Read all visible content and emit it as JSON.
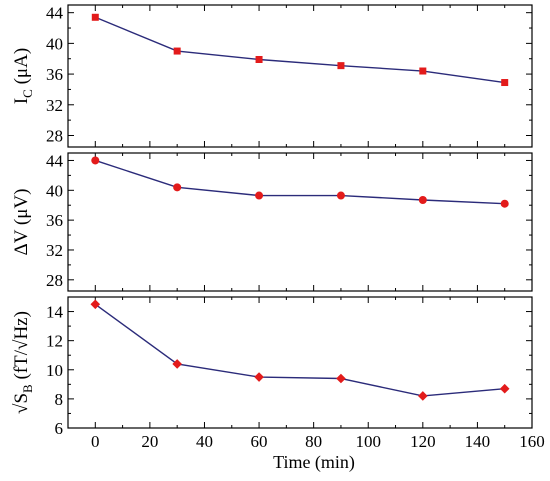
{
  "chart_data": [
    {
      "type": "line",
      "ylabel": {
        "main": "I",
        "sub": "C",
        "rest": " (μA)"
      },
      "x": [
        0,
        30,
        60,
        90,
        120,
        150
      ],
      "series": [
        {
          "values": [
            43.4,
            39.0,
            37.9,
            37.1,
            36.4,
            34.9
          ]
        }
      ],
      "marker": "square",
      "xlim": [
        -10,
        160
      ],
      "ylim": [
        26.5,
        45
      ],
      "yticks": [
        28,
        32,
        36,
        40,
        44
      ],
      "xticks": [
        0,
        20,
        40,
        60,
        80,
        100,
        120,
        140,
        160
      ],
      "show_xticklabels": false
    },
    {
      "type": "line",
      "ylabel": {
        "main": "ΔV (μV)",
        "sub": "",
        "rest": ""
      },
      "x": [
        0,
        30,
        60,
        90,
        120,
        150
      ],
      "series": [
        {
          "values": [
            44.0,
            40.4,
            39.3,
            39.3,
            38.7,
            38.2
          ]
        }
      ],
      "marker": "circle",
      "xlim": [
        -10,
        160
      ],
      "ylim": [
        26.5,
        45
      ],
      "yticks": [
        28,
        32,
        36,
        40,
        44
      ],
      "xticks": [
        0,
        20,
        40,
        60,
        80,
        100,
        120,
        140,
        160
      ],
      "show_xticklabels": false
    },
    {
      "type": "line",
      "ylabel": {
        "main": "√S",
        "sub": "B",
        "rest": " (fT/√Hz)"
      },
      "x": [
        0,
        30,
        60,
        90,
        120,
        150
      ],
      "series": [
        {
          "values": [
            14.5,
            10.4,
            9.5,
            9.4,
            8.2,
            8.7
          ]
        }
      ],
      "marker": "diamond",
      "xlim": [
        -10,
        160
      ],
      "ylim": [
        6,
        15
      ],
      "yticks": [
        6,
        8,
        10,
        12,
        14
      ],
      "xticks": [
        0,
        20,
        40,
        60,
        80,
        100,
        120,
        140,
        160
      ],
      "show_xticklabels": true
    }
  ],
  "xlabel": "Time (min)",
  "colors": {
    "line": "#2b2b7a",
    "marker": "#e31b1b",
    "axes": "#000000"
  }
}
